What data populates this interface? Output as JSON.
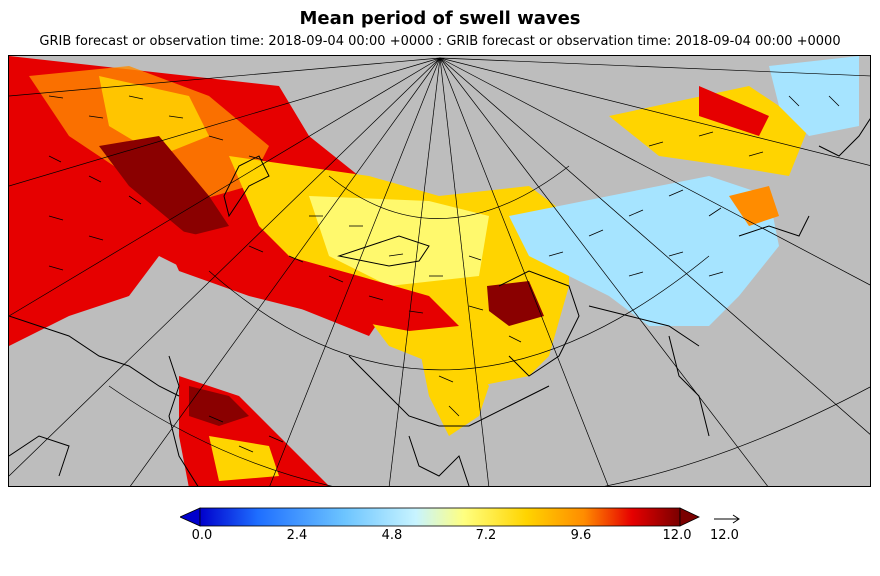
{
  "title": "Mean period of swell waves",
  "subtitle": "GRIB forecast or observation time: 2018-09-04 00:00 +0000 : GRIB forecast or observation time: 2018-09-04 00:00 +0000",
  "colorbar": {
    "ticks": [
      "0.0",
      "2.4",
      "4.8",
      "7.2",
      "9.6",
      "12.0"
    ],
    "min": 0.0,
    "max": 12.0,
    "colors": [
      "#0000cc",
      "#1e6eff",
      "#6cc4ff",
      "#c8f4ff",
      "#ffff80",
      "#ffd400",
      "#ff8c00",
      "#e60000",
      "#7a0000"
    ]
  },
  "vector_legend": {
    "label": "12.0"
  },
  "colors": {
    "land": "#bdbdbd",
    "coast": "#000000",
    "grid": "#000000"
  }
}
